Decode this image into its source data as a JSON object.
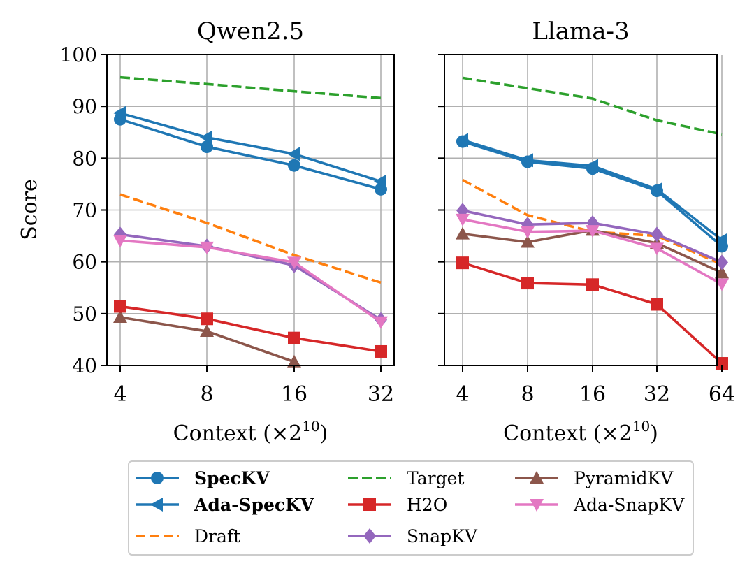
{
  "chart_data": [
    {
      "type": "line",
      "title": "Qwen2.5",
      "xlabel": "Context",
      "xlabel_unit_base": "×2",
      "xlabel_unit_exp": "10",
      "ylabel": "Score",
      "ylim": [
        40,
        100
      ],
      "yticks": [
        40,
        50,
        60,
        70,
        80,
        90,
        100
      ],
      "categories": [
        "4",
        "8",
        "16",
        "32"
      ],
      "grid": true,
      "series": [
        {
          "name": "SpecKV",
          "values": [
            87.5,
            82.2,
            78.6,
            74.0
          ]
        },
        {
          "name": "Ada-SpecKV",
          "values": [
            88.7,
            84.0,
            80.8,
            75.5
          ]
        },
        {
          "name": "Draft",
          "values": [
            73.0,
            67.5,
            61.3,
            56.0
          ]
        },
        {
          "name": "Target",
          "values": [
            95.6,
            94.3,
            92.9,
            91.6
          ]
        },
        {
          "name": "H2O",
          "values": [
            51.4,
            49.0,
            45.3,
            42.7
          ]
        },
        {
          "name": "SnapKV",
          "values": [
            65.3,
            63.0,
            59.3,
            48.8
          ]
        },
        {
          "name": "PyramidKV",
          "values": [
            49.3,
            46.6,
            40.7,
            null
          ]
        },
        {
          "name": "Ada-SnapKV",
          "values": [
            64.1,
            62.8,
            59.9,
            48.4
          ]
        }
      ]
    },
    {
      "type": "line",
      "title": "Llama-3",
      "xlabel": "Context",
      "xlabel_unit_base": "×2",
      "xlabel_unit_exp": "10",
      "ylabel": "",
      "ylim": [
        40,
        100
      ],
      "yticks": [
        40,
        50,
        60,
        70,
        80,
        90,
        100
      ],
      "categories": [
        "4",
        "8",
        "16",
        "32",
        "64"
      ],
      "grid": true,
      "series": [
        {
          "name": "SpecKV",
          "values": [
            83.2,
            79.3,
            78.0,
            73.7,
            63.0
          ]
        },
        {
          "name": "Ada-SpecKV",
          "values": [
            83.5,
            79.6,
            78.5,
            74.0,
            64.2
          ]
        },
        {
          "name": "Draft",
          "values": [
            75.8,
            69.0,
            65.8,
            65.0,
            59.5
          ]
        },
        {
          "name": "Target",
          "values": [
            95.5,
            93.5,
            91.5,
            87.3,
            84.6
          ]
        },
        {
          "name": "H2O",
          "values": [
            59.8,
            55.9,
            55.6,
            51.8,
            40.4
          ]
        },
        {
          "name": "SnapKV",
          "values": [
            69.9,
            67.2,
            67.5,
            65.3,
            59.9
          ]
        },
        {
          "name": "PyramidKV",
          "values": [
            65.4,
            63.8,
            66.1,
            63.6,
            57.9
          ]
        },
        {
          "name": "Ada-SnapKV",
          "values": [
            68.2,
            65.8,
            66.0,
            62.6,
            55.7
          ]
        }
      ]
    }
  ],
  "legend": {
    "placement": "bottom-center",
    "entries": [
      {
        "name": "SpecKV",
        "color": "#1f77b4",
        "marker": "circle",
        "dash": false,
        "bold": true
      },
      {
        "name": "Ada-SpecKV",
        "color": "#1f77b4",
        "marker": "triangle-left",
        "dash": false,
        "bold": true
      },
      {
        "name": "Draft",
        "color": "#ff7f0e",
        "marker": "none",
        "dash": true,
        "bold": false
      },
      {
        "name": "Target",
        "color": "#2ca02c",
        "marker": "none",
        "dash": true,
        "bold": false
      },
      {
        "name": "H2O",
        "color": "#d62728",
        "marker": "square",
        "dash": false,
        "bold": false
      },
      {
        "name": "SnapKV",
        "color": "#9467bd",
        "marker": "diamond",
        "dash": false,
        "bold": false
      },
      {
        "name": "PyramidKV",
        "color": "#8c564b",
        "marker": "triangle-up",
        "dash": false,
        "bold": false
      },
      {
        "name": "Ada-SnapKV",
        "color": "#e377c2",
        "marker": "triangle-down",
        "dash": false,
        "bold": false
      }
    ]
  }
}
